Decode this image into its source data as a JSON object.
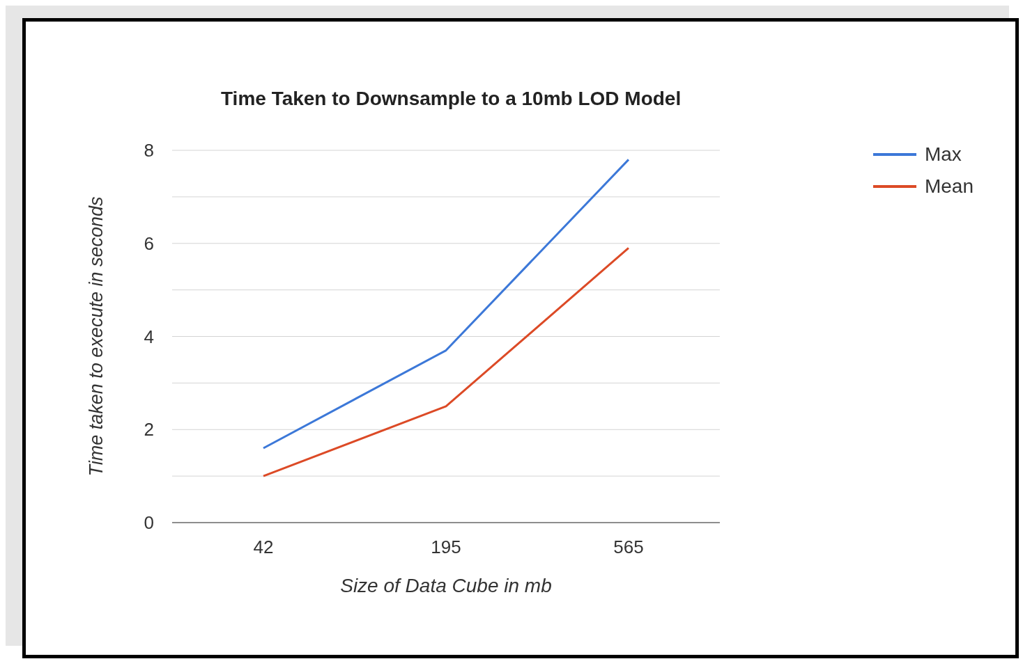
{
  "chart_data": {
    "type": "line",
    "title": "Time Taken to Downsample to a 10mb LOD Model",
    "xlabel": "Size of Data Cube in mb",
    "ylabel": "Time taken to execute in seconds",
    "categories": [
      "42",
      "195",
      "565"
    ],
    "series": [
      {
        "name": "Max",
        "color": "#3c78d8",
        "values": [
          1.6,
          3.7,
          7.8
        ]
      },
      {
        "name": "Mean",
        "color": "#dc4a26",
        "values": [
          1.0,
          2.5,
          5.9
        ]
      }
    ],
    "ylim": [
      0,
      8
    ],
    "yticks": [
      0,
      {
        "value": 1,
        "label": null
      },
      2,
      {
        "value": 3,
        "label": null
      },
      4,
      {
        "value": 5,
        "label": null
      },
      6,
      {
        "value": 7,
        "label": null
      },
      8
    ],
    "grid": "y",
    "legend": "top right",
    "marker": "none",
    "line_style": "solid"
  }
}
